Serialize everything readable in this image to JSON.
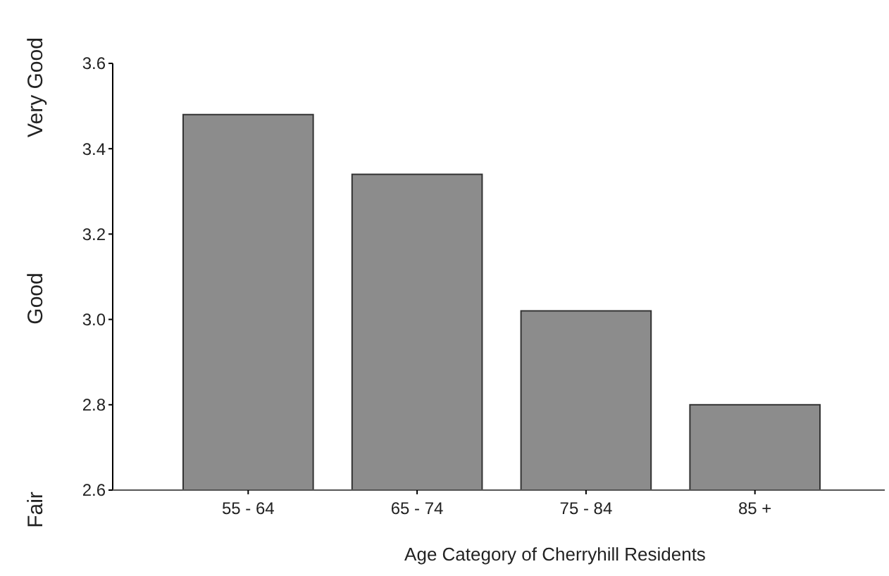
{
  "chart_data": {
    "type": "bar",
    "xlabel": "Age Category of Cherryhill Residents",
    "categories": [
      "55 - 64",
      "65 - 74",
      "75 - 84",
      "85 +"
    ],
    "values": [
      3.48,
      3.34,
      3.02,
      2.8
    ],
    "color": "#8c8c8c",
    "ylim": [
      2.6,
      3.6
    ],
    "yticks": [
      {
        "value": 2.6,
        "label": "2.6"
      },
      {
        "value": 2.8,
        "label": "2.8"
      },
      {
        "value": 3.0,
        "label": "3.0"
      },
      {
        "value": 3.2,
        "label": "3.2"
      },
      {
        "value": 3.4,
        "label": "3.4"
      },
      {
        "value": 3.6,
        "label": "3.6"
      }
    ],
    "annotations": [
      "Very Good",
      "Good",
      "Fair"
    ],
    "grid": false
  }
}
